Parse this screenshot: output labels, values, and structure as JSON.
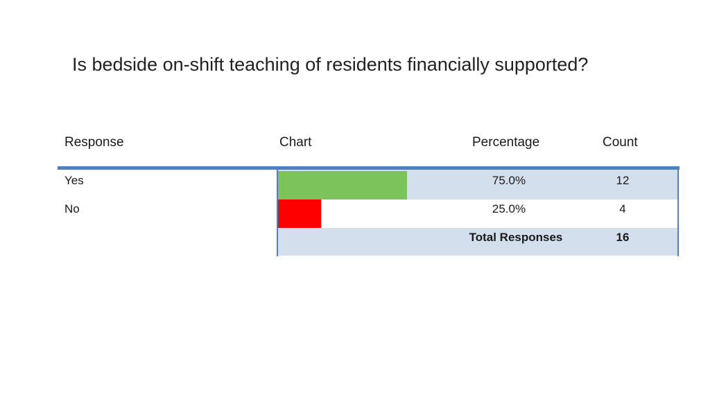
{
  "title": "Is bedside on-shift teaching of residents financially supported?",
  "headers": {
    "response": "Response",
    "chart": "Chart",
    "percentage": "Percentage",
    "count": "Count"
  },
  "rows": [
    {
      "response": "Yes",
      "percentage": "75.0%",
      "count": "12",
      "color": "#7dc35b"
    },
    {
      "response": "No",
      "percentage": "25.0%",
      "count": "4",
      "color": "#ff0000"
    }
  ],
  "total": {
    "label": "Total Responses",
    "value": "16"
  },
  "chart_data": {
    "type": "bar",
    "categories": [
      "Yes",
      "No"
    ],
    "values": [
      75.0,
      25.0
    ],
    "counts": [
      12,
      4
    ],
    "xlim": [
      0,
      100
    ],
    "colors": [
      "#7dc35b",
      "#ff0000"
    ]
  },
  "colors": {
    "rule": "#4f81bd",
    "row_shade": "#d3dfec"
  }
}
